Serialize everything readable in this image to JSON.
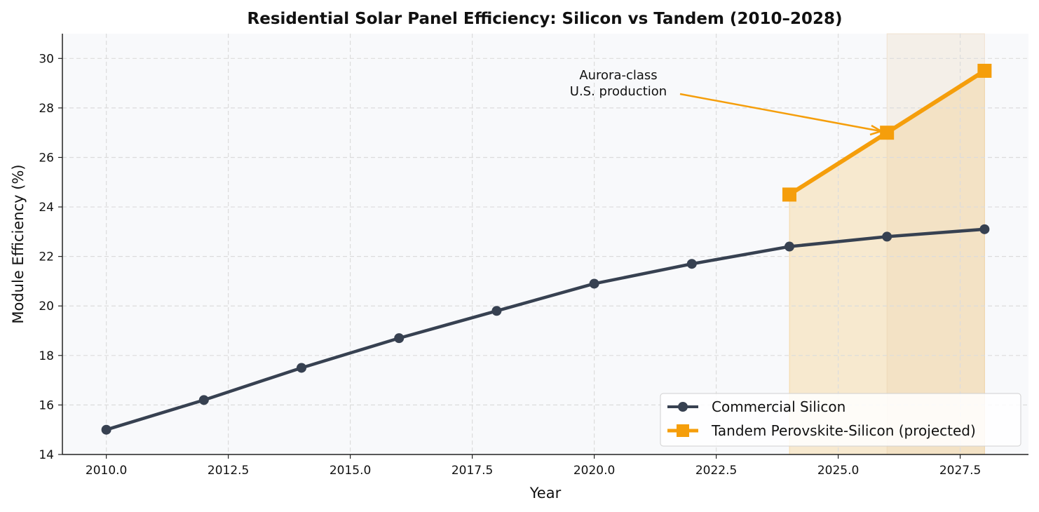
{
  "chart_data": {
    "type": "line",
    "title": "Residential Solar Panel Efficiency: Silicon vs Tandem (2010–2028)",
    "xlabel": "Year",
    "ylabel": "Module Efficiency (%)",
    "xlim": [
      2009.1,
      2028.9
    ],
    "ylim": [
      14,
      31
    ],
    "xticks": [
      2010.0,
      2012.5,
      2015.0,
      2017.5,
      2020.0,
      2022.5,
      2025.0,
      2027.5
    ],
    "xtick_labels": [
      "2010.0",
      "2012.5",
      "2015.0",
      "2017.5",
      "2020.0",
      "2022.5",
      "2025.0",
      "2027.5"
    ],
    "yticks": [
      14,
      16,
      18,
      20,
      22,
      24,
      26,
      28,
      30
    ],
    "ytick_labels": [
      "14",
      "16",
      "18",
      "20",
      "22",
      "24",
      "26",
      "28",
      "30"
    ],
    "grid": true,
    "legend_position": "bottom-right",
    "background_color": "#f8f9fb",
    "series": [
      {
        "name": "Commercial Silicon",
        "color": "#374151",
        "marker": "circle",
        "x": [
          2010,
          2012,
          2014,
          2016,
          2018,
          2020,
          2022,
          2024,
          2026,
          2028
        ],
        "y": [
          15.0,
          16.2,
          17.5,
          18.7,
          19.8,
          20.9,
          21.7,
          22.4,
          22.8,
          23.1
        ]
      },
      {
        "name": "Tandem Perovskite-Silicon (projected)",
        "color": "#f59e0b",
        "marker": "square",
        "x": [
          2024,
          2026,
          2028
        ],
        "y": [
          24.5,
          27.0,
          29.5
        ]
      }
    ],
    "shaded_regions": [
      {
        "type": "fill-under-series",
        "series": 1,
        "from_x": 2024,
        "to_x": 2028,
        "color": "#f59e0b"
      },
      {
        "type": "vertical-span",
        "from_x": 2026,
        "to_x": 2028,
        "color": "#e8c9a0"
      }
    ],
    "annotation": {
      "lines": [
        "Aurora-class",
        "U.S. production"
      ],
      "target_x": 2026,
      "target_y": 27.0,
      "color": "#f59e0b"
    }
  }
}
